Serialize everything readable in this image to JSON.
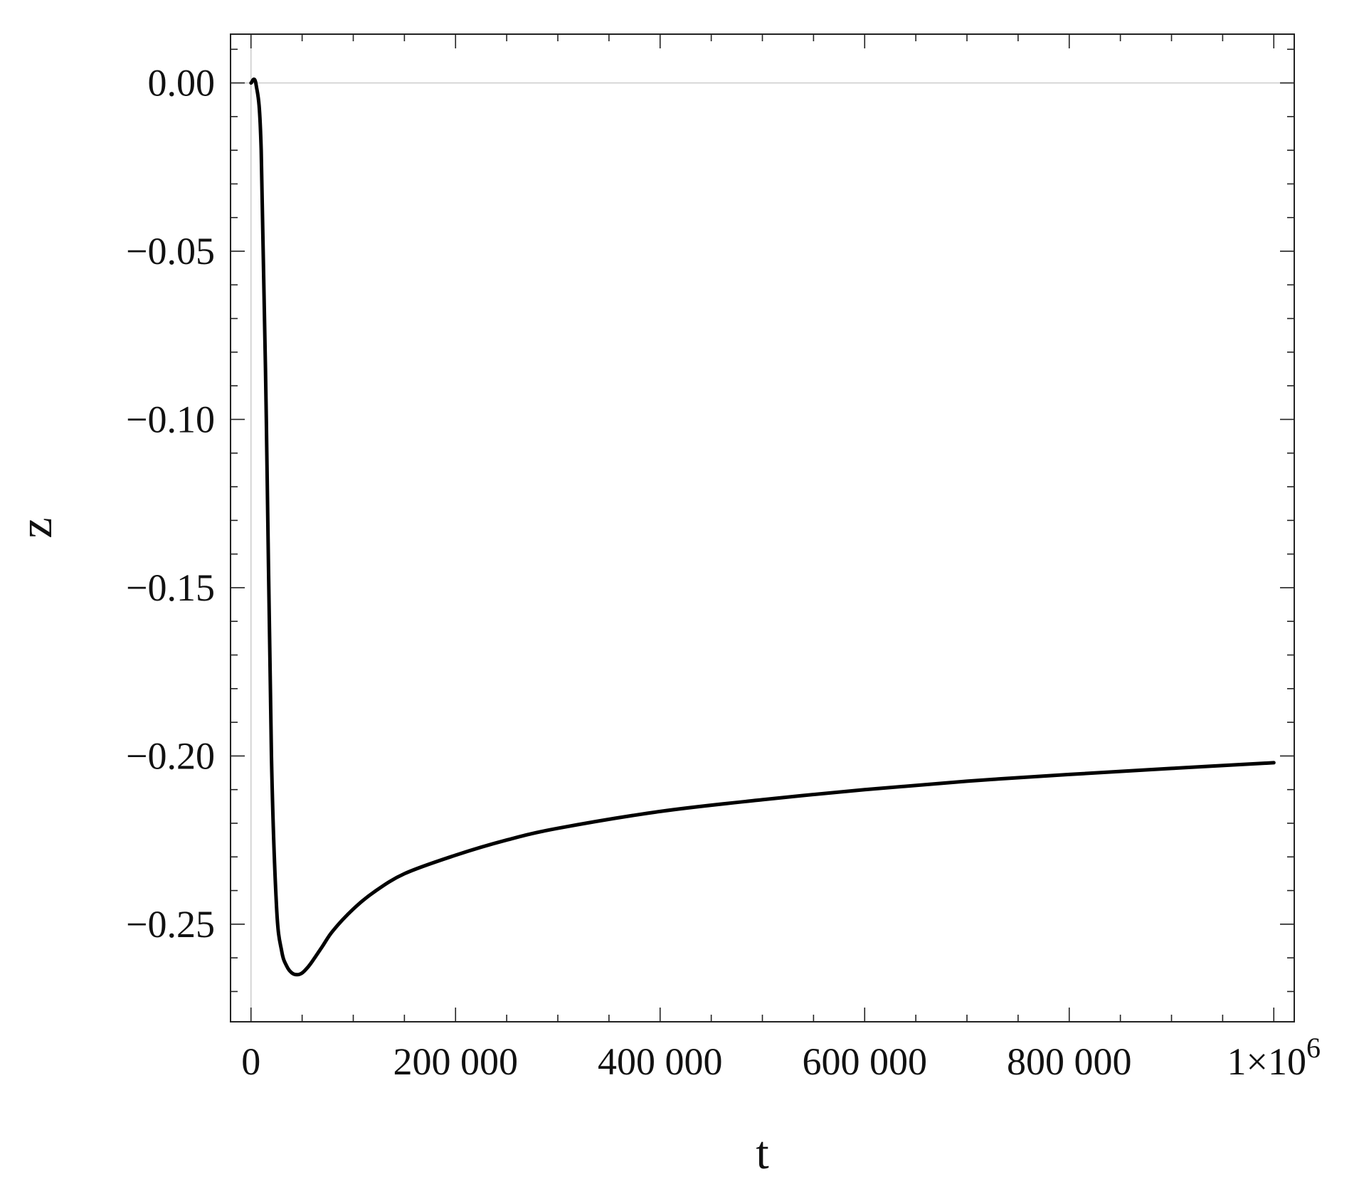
{
  "chart_data": {
    "type": "line",
    "title": "",
    "xlabel": "t",
    "ylabel": "z",
    "xlim": [
      -20000,
      1020000
    ],
    "ylim": [
      -0.279,
      0.0145
    ],
    "x_ticks": [
      {
        "value": 0,
        "label": "0"
      },
      {
        "value": 200000,
        "label": "200 000"
      },
      {
        "value": 400000,
        "label": "400 000"
      },
      {
        "value": 600000,
        "label": "600 000"
      },
      {
        "value": 800000,
        "label": "800 000"
      },
      {
        "value": 1000000,
        "label": "1×10",
        "sup": "6"
      }
    ],
    "y_ticks": [
      {
        "value": 0.0,
        "label": "0.00"
      },
      {
        "value": -0.05,
        "label": "−0.05"
      },
      {
        "value": -0.1,
        "label": "−0.10"
      },
      {
        "value": -0.15,
        "label": "−0.15"
      },
      {
        "value": -0.2,
        "label": "−0.20"
      },
      {
        "value": -0.25,
        "label": "−0.25"
      }
    ],
    "grid": false,
    "legend": "none",
    "series": [
      {
        "color": "#000000",
        "points": [
          [
            0,
            0.0
          ],
          [
            5000,
            -0.0005
          ],
          [
            10000,
            -0.02
          ],
          [
            15000,
            -0.1
          ],
          [
            20000,
            -0.2
          ],
          [
            25000,
            -0.245
          ],
          [
            30000,
            -0.258
          ],
          [
            35000,
            -0.2625
          ],
          [
            40000,
            -0.2645
          ],
          [
            45000,
            -0.265
          ],
          [
            50000,
            -0.2645
          ],
          [
            55000,
            -0.263
          ],
          [
            60000,
            -0.261
          ],
          [
            70000,
            -0.2565
          ],
          [
            80000,
            -0.252
          ],
          [
            100000,
            -0.2455
          ],
          [
            120000,
            -0.2405
          ],
          [
            150000,
            -0.235
          ],
          [
            200000,
            -0.2295
          ],
          [
            250000,
            -0.225
          ],
          [
            300000,
            -0.2215
          ],
          [
            400000,
            -0.2165
          ],
          [
            500000,
            -0.213
          ],
          [
            600000,
            -0.21
          ],
          [
            700000,
            -0.2075
          ],
          [
            800000,
            -0.2055
          ],
          [
            900000,
            -0.2037
          ],
          [
            1000000,
            -0.202
          ]
        ]
      }
    ]
  }
}
